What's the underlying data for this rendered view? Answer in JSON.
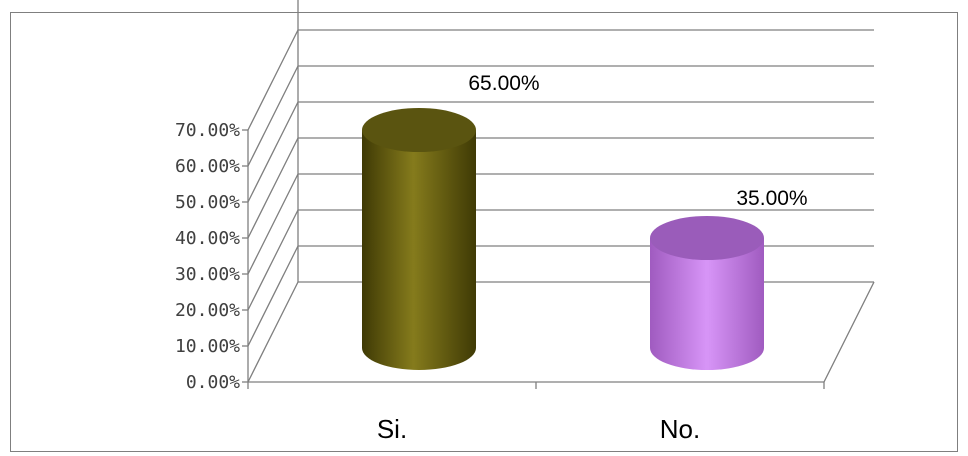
{
  "chart_data": {
    "type": "bar",
    "style": "3d-cylinder",
    "categories": [
      "Si.",
      "No."
    ],
    "values": [
      0.65,
      0.35
    ],
    "data_labels": [
      "65.00%",
      "35.00%"
    ],
    "colors": [
      "#6b6410",
      "#c97ee6"
    ],
    "ylim": [
      0,
      0.7
    ],
    "yticks": [
      0,
      0.1,
      0.2,
      0.3,
      0.4,
      0.5,
      0.6,
      0.7
    ],
    "ytick_labels": [
      "0.00%",
      "10.00%",
      "20.00%",
      "30.00%",
      "40.00%",
      "50.00%",
      "60.00%",
      "70.00%"
    ],
    "grid": true,
    "legend": "none"
  }
}
